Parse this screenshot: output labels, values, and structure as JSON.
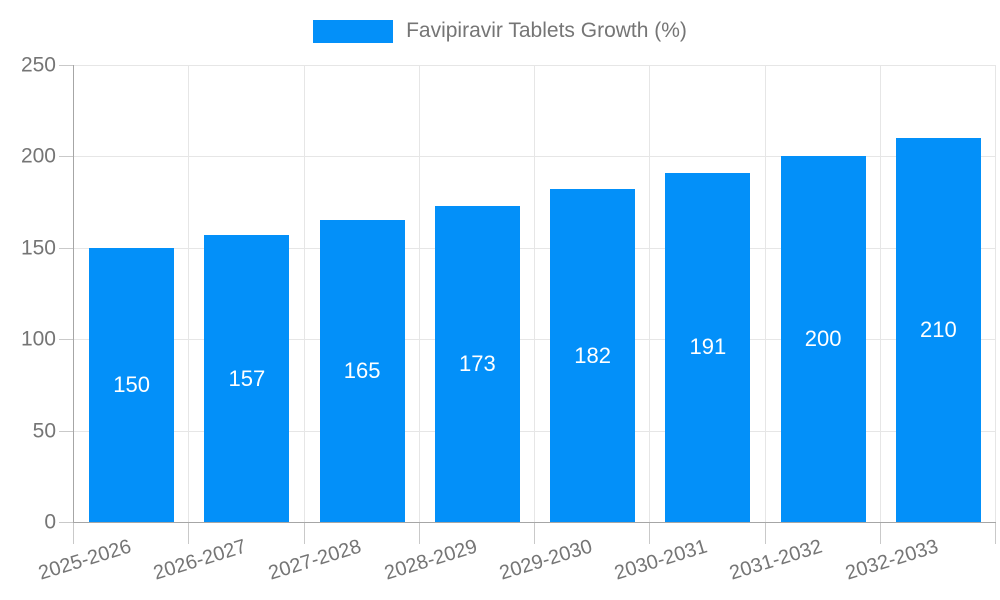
{
  "chart_data": {
    "type": "bar",
    "title": "Favipiravir Tablets Growth (%)",
    "categories": [
      "2025-2026",
      "2026-2027",
      "2027-2028",
      "2028-2029",
      "2029-2030",
      "2030-2031",
      "2031-2032",
      "2032-2033"
    ],
    "values": [
      150,
      157,
      165,
      173,
      182,
      191,
      200,
      210
    ],
    "xlabel": "",
    "ylabel": "",
    "ylim": [
      0,
      250
    ],
    "yticks": [
      0,
      50,
      100,
      150,
      200,
      250
    ],
    "grid": true,
    "legend_position": "top-center",
    "bar_color": "#0390f9",
    "value_label_color": "#ffffff",
    "axis_text_color": "#757575",
    "gridline_color": "#e6e6e6",
    "axis_line_color": "#a6a6a6"
  }
}
